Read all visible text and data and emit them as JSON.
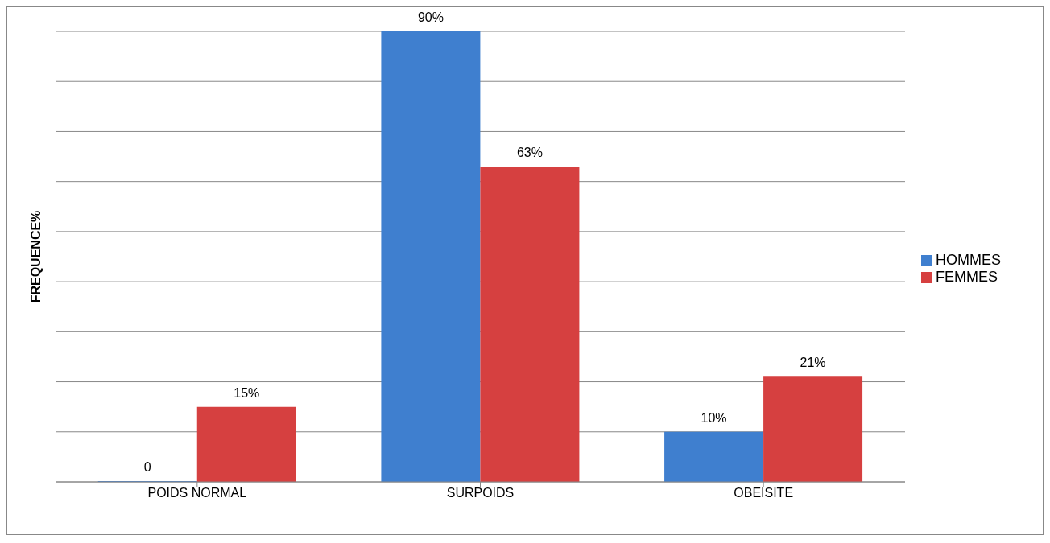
{
  "chart_data": {
    "type": "bar",
    "ylabel": "FREQUENCE%",
    "categories": [
      "POIDS NORMAL",
      "SURPOIDS",
      "OBEISITE"
    ],
    "series": [
      {
        "name": "HOMMES",
        "color": "#3f7fcf",
        "values": [
          0,
          90,
          10
        ],
        "value_labels": [
          "0",
          "90%",
          "10%"
        ]
      },
      {
        "name": "FEMMES",
        "color": "#d64040",
        "values": [
          15,
          63,
          21
        ],
        "value_labels": [
          "15%",
          "63%",
          "21%"
        ]
      }
    ],
    "data_labels": true,
    "grid": "y",
    "legend": "right",
    "tick_labels": "x"
  }
}
